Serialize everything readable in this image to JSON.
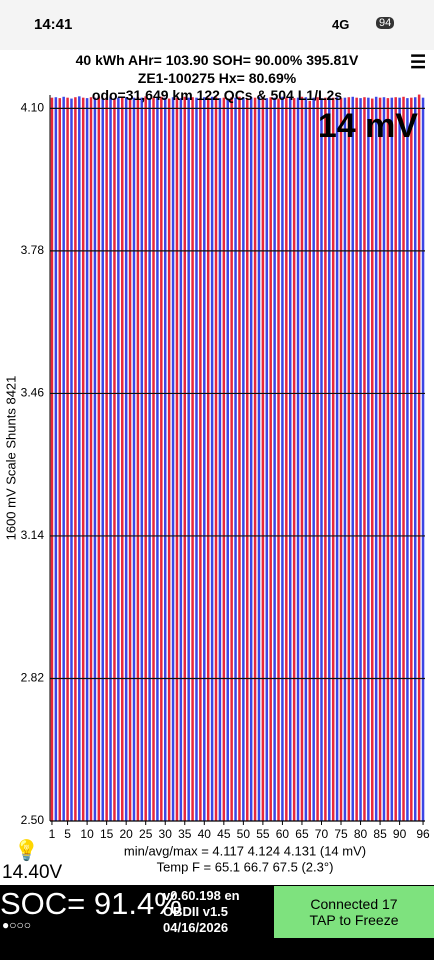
{
  "status_bar": {
    "time": "14:41",
    "network": "4G",
    "battery": "94"
  },
  "header": {
    "line1": "40 kWh  AHr= 103.90  SOH= 90.00%   395.81V",
    "line2": "ZE1-100275   Hx= 80.69%",
    "line3": "odo=31,649 km 122 QCs & 504 L1/L2s"
  },
  "chart_data": {
    "type": "bar",
    "annotation": "14 mV",
    "y_label": "1600 mV Scale  Shunts 8421",
    "x": [
      1,
      2,
      3,
      4,
      5,
      6,
      7,
      8,
      9,
      10,
      11,
      12,
      13,
      14,
      15,
      16,
      17,
      18,
      19,
      20,
      21,
      22,
      23,
      24,
      25,
      26,
      27,
      28,
      29,
      30,
      31,
      32,
      33,
      34,
      35,
      36,
      37,
      38,
      39,
      40,
      41,
      42,
      43,
      44,
      45,
      46,
      47,
      48,
      49,
      50,
      51,
      52,
      53,
      54,
      55,
      56,
      57,
      58,
      59,
      60,
      61,
      62,
      63,
      64,
      65,
      66,
      67,
      68,
      69,
      70,
      71,
      72,
      73,
      74,
      75,
      76,
      77,
      78,
      79,
      80,
      81,
      82,
      83,
      84,
      85,
      86,
      87,
      88,
      89,
      90,
      91,
      92,
      93,
      94,
      95,
      96
    ],
    "values": [
      4.124,
      4.125,
      4.123,
      4.126,
      4.124,
      4.122,
      4.125,
      4.127,
      4.124,
      4.123,
      4.125,
      4.124,
      4.126,
      4.123,
      4.124,
      4.125,
      4.122,
      4.124,
      4.126,
      4.125,
      4.123,
      4.124,
      4.125,
      4.124,
      4.127,
      4.123,
      4.124,
      4.125,
      4.126,
      4.124,
      4.122,
      4.125,
      4.124,
      4.123,
      4.126,
      4.124,
      4.125,
      4.124,
      4.123,
      4.125,
      4.124,
      4.126,
      4.125,
      4.123,
      4.124,
      4.122,
      4.125,
      4.124,
      4.126,
      4.124,
      4.123,
      4.125,
      4.124,
      4.126,
      4.124,
      4.123,
      4.125,
      4.124,
      4.122,
      4.126,
      4.124,
      4.125,
      4.123,
      4.124,
      4.126,
      4.125,
      4.117,
      4.124,
      4.125,
      4.123,
      4.124,
      4.126,
      4.124,
      4.125,
      4.123,
      4.124,
      4.125,
      4.126,
      4.124,
      4.123,
      4.125,
      4.124,
      4.122,
      4.126,
      4.124,
      4.125,
      4.123,
      4.124,
      4.125,
      4.124,
      4.126,
      4.123,
      4.124,
      4.125,
      4.131,
      4.124
    ],
    "bar_colors": [
      "#e8283c",
      "#3c46e6"
    ],
    "ylim": [
      2.5,
      4.13
    ],
    "yticks": [
      {
        "value": 2.5,
        "label": "2.50"
      },
      {
        "value": 2.82,
        "label": "2.82"
      },
      {
        "value": 3.14,
        "label": "3.14"
      },
      {
        "value": 3.46,
        "label": "3.46"
      },
      {
        "value": 3.78,
        "label": "3.78"
      },
      {
        "value": 4.1,
        "label": "4.10"
      }
    ],
    "xticks": [
      1,
      5,
      10,
      15,
      20,
      25,
      30,
      35,
      40,
      45,
      50,
      55,
      60,
      65,
      70,
      75,
      80,
      85,
      90,
      96
    ],
    "grid": true,
    "stats": "min/avg/max = 4.117 4.124 4.131  (14 mV)",
    "temps": "Temp F = 65.1  66.7  67.5  (2.3°)"
  },
  "footer": {
    "aux_voltage": "14.40V",
    "soc": "SOC= 91.4%",
    "version": "v0.60.198 en",
    "obd": "OBDII  v1.5",
    "date": "04/16/2026",
    "connected": "Connected 17",
    "tap": "TAP to Freeze"
  }
}
